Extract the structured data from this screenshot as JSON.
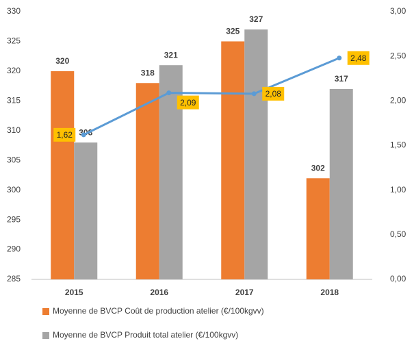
{
  "chart_data": {
    "type": "bar",
    "categories": [
      "2015",
      "2016",
      "2017",
      "2018"
    ],
    "series": [
      {
        "name": "Moyenne de BVCP Coût de production atelier (€/100kgvv)",
        "color": "#ed7d31",
        "values": [
          320,
          318,
          325,
          302
        ]
      },
      {
        "name": "Moyenne de BVCP Produit total atelier (€/100kgvv)",
        "color": "#a5a5a5",
        "values": [
          308,
          321,
          327,
          317
        ]
      },
      {
        "type": "line",
        "axis": "y2",
        "color": "#5b9bd5",
        "values": [
          1.62,
          2.09,
          2.08,
          2.48
        ],
        "value_labels": [
          "1,62",
          "2,09",
          "2,08",
          "2,48"
        ]
      }
    ],
    "ylim": [
      285,
      330
    ],
    "yticks": [
      285,
      290,
      295,
      300,
      305,
      310,
      315,
      320,
      325,
      330
    ],
    "y2lim": [
      0,
      3
    ],
    "y2ticks": [
      {
        "value": 0,
        "label": "0,00"
      },
      {
        "value": 0.5,
        "label": "0,50"
      },
      {
        "value": 1,
        "label": "1,00"
      },
      {
        "value": 1.5,
        "label": "1,50"
      },
      {
        "value": 2,
        "label": "2,00"
      },
      {
        "value": 2.5,
        "label": "2,50"
      },
      {
        "value": 3,
        "label": "3,00"
      }
    ],
    "grid": false,
    "legend": "bottom"
  }
}
